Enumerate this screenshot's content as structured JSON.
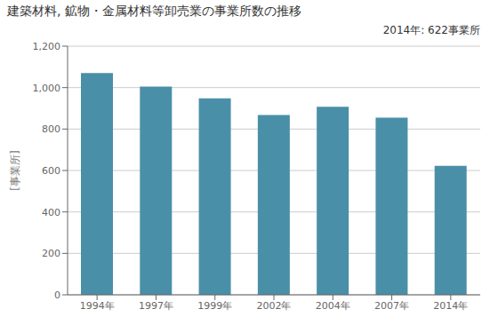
{
  "chart_data": {
    "type": "bar",
    "title": "建築材料, 鉱物・金属材料等卸売業の事業所数の推移",
    "ylabel": "[事業所]",
    "annotation": "2014年: 622事業所",
    "categories": [
      "1994年",
      "1997年",
      "1999年",
      "2002年",
      "2004年",
      "2007年",
      "2014年"
    ],
    "values": [
      1070,
      1005,
      948,
      868,
      908,
      855,
      622
    ],
    "color": "#4a8fa8",
    "ylim": [
      0,
      1200
    ],
    "yticks": [
      0,
      200,
      400,
      600,
      800,
      {
        "value": 1000,
        "label": "1,000"
      },
      {
        "value": 1200,
        "label": "1,200"
      }
    ],
    "grid": true
  }
}
